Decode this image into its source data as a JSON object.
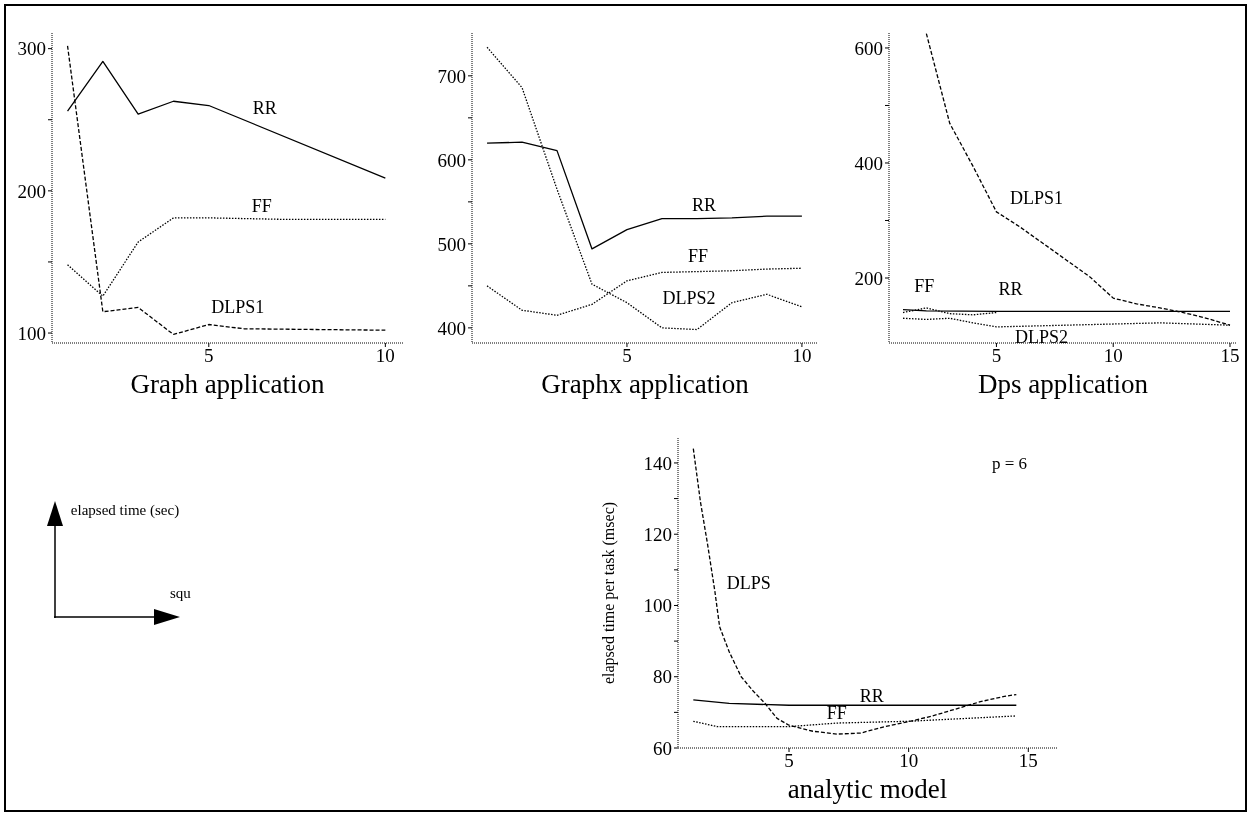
{
  "chart_data": [
    {
      "type": "line",
      "title": "Graph application",
      "xlim": [
        0.56,
        10.5
      ],
      "xticks": [
        5,
        10
      ],
      "ylim": [
        93,
        311
      ],
      "yticks": [
        100,
        {
          "value": 150,
          "label": null
        },
        200,
        {
          "value": 250,
          "label": null
        },
        300
      ],
      "series": [
        {
          "name": "RR",
          "color": "#000000",
          "line_style": "solid",
          "x": [
            1,
            2,
            3,
            4,
            5,
            10
          ],
          "values": [
            256,
            291,
            254,
            263,
            260,
            209
          ]
        },
        {
          "name": "FF",
          "color": "#000000",
          "line_style": "dotted",
          "x": [
            1,
            2,
            3,
            4,
            5,
            7,
            10
          ],
          "values": [
            148,
            126,
            164,
            181,
            181,
            180,
            180
          ]
        },
        {
          "name": "DLPS1",
          "color": "#000000",
          "line_style": "dashed",
          "x": [
            1,
            2,
            3,
            4,
            5,
            6,
            10
          ],
          "values": [
            302,
            115,
            118,
            99,
            106,
            103,
            102
          ]
        }
      ]
    },
    {
      "type": "line",
      "title": "Graphx application",
      "xlim": [
        0.57,
        10.46
      ],
      "xticks": [
        5,
        10
      ],
      "ylim": [
        382,
        751
      ],
      "yticks": [
        400,
        {
          "value": 450,
          "label": null
        },
        500,
        {
          "value": 550,
          "label": null
        },
        600,
        {
          "value": 650,
          "label": null
        },
        700
      ],
      "series": [
        {
          "name": "RR",
          "color": "#000000",
          "line_style": "solid",
          "x": [
            1,
            2,
            3,
            4,
            5,
            6,
            7,
            8,
            9,
            10
          ],
          "values": [
            620,
            621,
            611,
            494,
            517,
            530,
            530,
            531,
            533,
            533
          ]
        },
        {
          "name": "FF",
          "color": "#000000",
          "line_style": "dotted",
          "x": [
            1,
            2,
            3,
            4,
            5,
            6,
            7,
            8,
            9,
            10
          ],
          "values": [
            450,
            421,
            415,
            428,
            456,
            466,
            467,
            468,
            470,
            471
          ]
        },
        {
          "name": "DLPS2",
          "color": "#000000",
          "line_style": "dotted",
          "x": [
            1,
            2,
            3,
            4,
            5,
            6,
            7,
            8,
            9,
            10
          ],
          "values": [
            734,
            686,
            565,
            452,
            430,
            400,
            398,
            430,
            440,
            425
          ]
        }
      ]
    },
    {
      "type": "line",
      "title": "Dps application",
      "xlim": [
        0.4,
        15.3
      ],
      "xticks": [
        5,
        10,
        15
      ],
      "ylim": [
        87,
        626
      ],
      "yticks": [
        200,
        {
          "value": 300,
          "label": null
        },
        400,
        {
          "value": 500,
          "label": null
        },
        600
      ],
      "series": [
        {
          "name": "FF",
          "color": "#000000",
          "line_style": "dotted",
          "x": [
            1,
            2,
            3,
            4,
            5
          ],
          "values": [
            140,
            148,
            138,
            136,
            140
          ]
        },
        {
          "name": "RR",
          "color": "#000000",
          "line_style": "solid",
          "x": [
            1,
            2,
            5,
            10,
            15
          ],
          "values": [
            145,
            143,
            142,
            142,
            142
          ]
        },
        {
          "name": "DLPS1",
          "color": "#000000",
          "line_style": "dashed",
          "x": [
            2,
            3,
            4,
            5,
            6,
            7,
            8,
            9,
            10,
            11,
            12,
            13,
            14,
            15
          ],
          "values": [
            625,
            469,
            394,
            315,
            289,
            260,
            231,
            202,
            165,
            155,
            148,
            140,
            130,
            118
          ]
        },
        {
          "name": "DLPS2",
          "color": "#000000",
          "line_style": "dotted",
          "x": [
            1,
            2,
            3,
            4,
            5,
            10,
            12,
            15
          ],
          "values": [
            130,
            128,
            130,
            122,
            115,
            120,
            122,
            118
          ]
        }
      ]
    },
    {
      "type": "other",
      "annotations": [
        "elapsed time (sec)",
        "squ"
      ]
    },
    {
      "type": "line",
      "title": "analytic model",
      "ylabel": "elapsed time per task (msec)",
      "annotations": [
        "p = 6"
      ],
      "xlim": [
        0.36,
        16.2
      ],
      "xticks": [
        5,
        10,
        15
      ],
      "ylim": [
        60,
        147
      ],
      "yticks": [
        60,
        {
          "value": 70,
          "label": null
        },
        80,
        {
          "value": 90,
          "label": null
        },
        100,
        {
          "value": 110,
          "label": null
        },
        120,
        {
          "value": 130,
          "label": null
        },
        140
      ],
      "series": [
        {
          "name": "DLPS",
          "color": "#000000",
          "line_style": "dashed",
          "x": [
            1,
            1.3,
            1.6,
            1.9,
            2.1,
            2.5,
            3,
            3.5,
            4,
            4.5,
            5,
            6,
            7,
            8,
            9,
            10,
            11,
            12,
            13,
            14,
            14.5
          ],
          "values": [
            144,
            129,
            117,
            104,
            94,
            87,
            80,
            76,
            72.5,
            68.3,
            66.4,
            64.7,
            63.9,
            64.2,
            66,
            67.4,
            69,
            71,
            73,
            74.5,
            75
          ]
        },
        {
          "name": "RR",
          "color": "#000000",
          "line_style": "solid",
          "x": [
            1,
            2.5,
            5,
            7,
            10,
            14.5
          ],
          "values": [
            73.5,
            72.5,
            72,
            72,
            72,
            72
          ]
        },
        {
          "name": "FF",
          "color": "#000000",
          "line_style": "dotted",
          "x": [
            1,
            2,
            5,
            7,
            10,
            14.5
          ],
          "values": [
            67.5,
            66,
            66,
            67,
            67.5,
            69
          ]
        }
      ]
    }
  ]
}
